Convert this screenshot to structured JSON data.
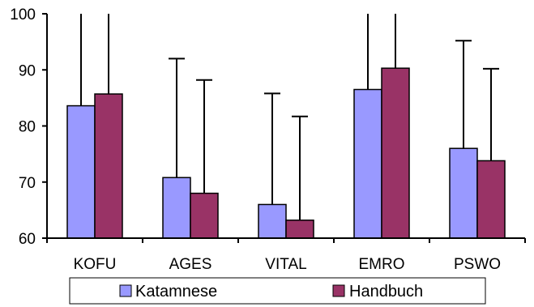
{
  "chart_data": {
    "type": "bar",
    "title": "",
    "xlabel": "",
    "ylabel": "",
    "categories": [
      "KOFU",
      "AGES",
      "VITAL",
      "EMRO",
      "PSWO"
    ],
    "series": [
      {
        "name": "Katamnese",
        "color": "#9999ff",
        "values": [
          83.6,
          70.8,
          66.0,
          86.5,
          76.0
        ],
        "error_upper": [
          102.0,
          92.0,
          85.8,
          102.0,
          95.2
        ]
      },
      {
        "name": "Handbuch",
        "color": "#993366",
        "values": [
          85.7,
          68.0,
          63.2,
          90.3,
          73.8
        ],
        "error_upper": [
          102.0,
          88.2,
          81.7,
          102.0,
          90.2
        ]
      }
    ],
    "ylim": [
      60,
      100
    ],
    "yticks": [
      60,
      70,
      80,
      90,
      100
    ],
    "grid": false,
    "legend": "bottom"
  }
}
